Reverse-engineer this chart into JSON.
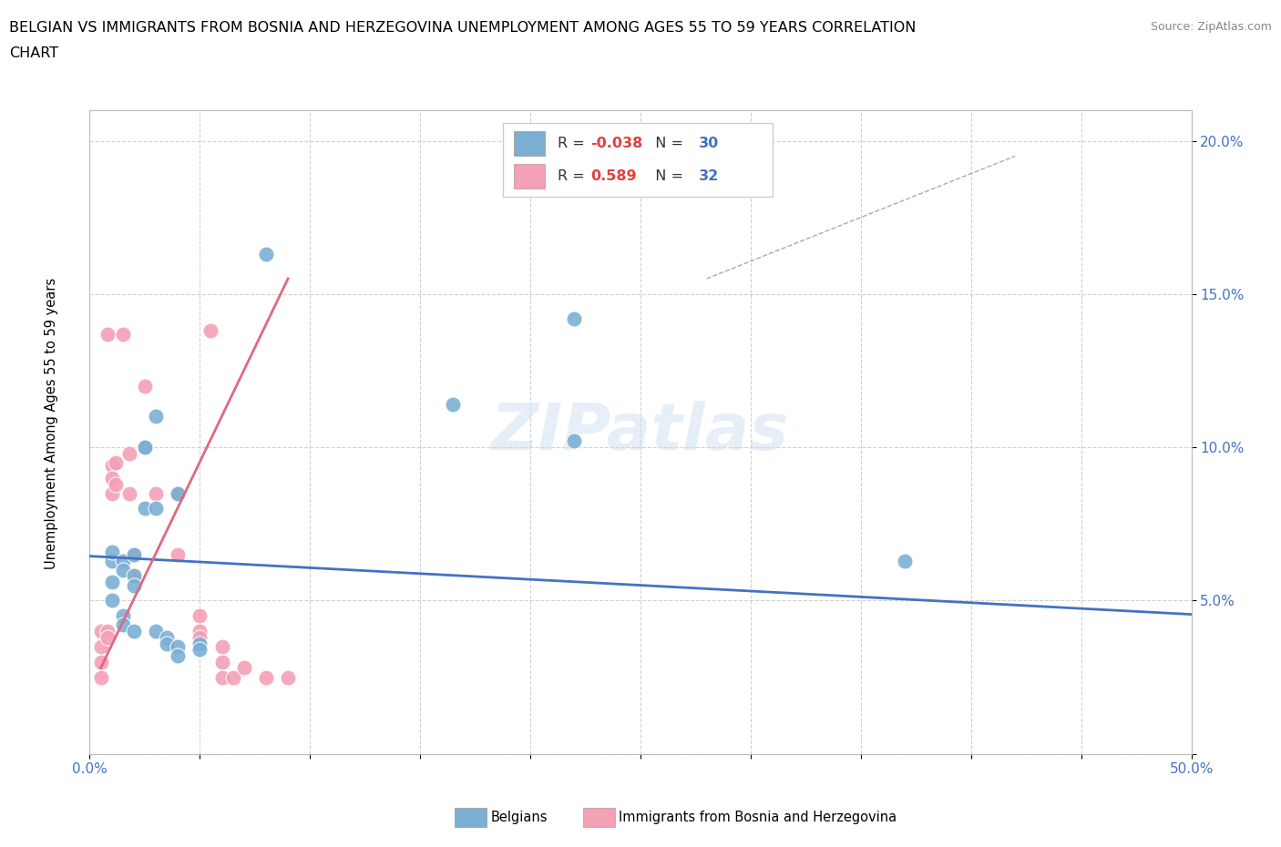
{
  "title_line1": "BELGIAN VS IMMIGRANTS FROM BOSNIA AND HERZEGOVINA UNEMPLOYMENT AMONG AGES 55 TO 59 YEARS CORRELATION",
  "title_line2": "CHART",
  "source_text": "Source: ZipAtlas.com",
  "ylabel": "Unemployment Among Ages 55 to 59 years",
  "xlim": [
    0.0,
    0.5
  ],
  "ylim": [
    0.0,
    0.21
  ],
  "xticks": [
    0.0,
    0.05,
    0.1,
    0.15,
    0.2,
    0.25,
    0.3,
    0.35,
    0.4,
    0.45,
    0.5
  ],
  "xticklabels": [
    "0.0%",
    "",
    "",
    "",
    "",
    "",
    "",
    "",
    "",
    "",
    "50.0%"
  ],
  "yticks": [
    0.0,
    0.05,
    0.1,
    0.15,
    0.2
  ],
  "yticklabels": [
    "",
    "5.0%",
    "10.0%",
    "15.0%",
    "20.0%"
  ],
  "blue_R": "-0.038",
  "blue_N": "30",
  "pink_R": "0.589",
  "pink_N": "32",
  "blue_color": "#7BAFD4",
  "pink_color": "#F4A0B5",
  "blue_line_color": "#4472C4",
  "pink_line_color": "#E06880",
  "watermark": "ZIPatlas",
  "blue_scatter": [
    [
      0.01,
      0.063
    ],
    [
      0.01,
      0.066
    ],
    [
      0.01,
      0.056
    ],
    [
      0.01,
      0.05
    ],
    [
      0.015,
      0.063
    ],
    [
      0.015,
      0.06
    ],
    [
      0.015,
      0.045
    ],
    [
      0.015,
      0.042
    ],
    [
      0.02,
      0.065
    ],
    [
      0.02,
      0.058
    ],
    [
      0.02,
      0.055
    ],
    [
      0.02,
      0.04
    ],
    [
      0.025,
      0.1
    ],
    [
      0.025,
      0.1
    ],
    [
      0.025,
      0.08
    ],
    [
      0.03,
      0.11
    ],
    [
      0.03,
      0.08
    ],
    [
      0.03,
      0.04
    ],
    [
      0.035,
      0.038
    ],
    [
      0.035,
      0.036
    ],
    [
      0.04,
      0.085
    ],
    [
      0.04,
      0.035
    ],
    [
      0.04,
      0.032
    ],
    [
      0.05,
      0.036
    ],
    [
      0.05,
      0.034
    ],
    [
      0.08,
      0.163
    ],
    [
      0.165,
      0.114
    ],
    [
      0.22,
      0.142
    ],
    [
      0.22,
      0.102
    ],
    [
      0.37,
      0.063
    ]
  ],
  "pink_scatter": [
    [
      0.005,
      0.035
    ],
    [
      0.005,
      0.04
    ],
    [
      0.005,
      0.03
    ],
    [
      0.005,
      0.025
    ],
    [
      0.008,
      0.137
    ],
    [
      0.008,
      0.04
    ],
    [
      0.008,
      0.038
    ],
    [
      0.01,
      0.094
    ],
    [
      0.01,
      0.09
    ],
    [
      0.01,
      0.085
    ],
    [
      0.012,
      0.095
    ],
    [
      0.012,
      0.088
    ],
    [
      0.015,
      0.137
    ],
    [
      0.018,
      0.098
    ],
    [
      0.018,
      0.085
    ],
    [
      0.02,
      0.065
    ],
    [
      0.02,
      0.058
    ],
    [
      0.025,
      0.12
    ],
    [
      0.03,
      0.085
    ],
    [
      0.04,
      0.085
    ],
    [
      0.04,
      0.065
    ],
    [
      0.05,
      0.045
    ],
    [
      0.05,
      0.04
    ],
    [
      0.05,
      0.038
    ],
    [
      0.055,
      0.138
    ],
    [
      0.06,
      0.035
    ],
    [
      0.06,
      0.03
    ],
    [
      0.06,
      0.025
    ],
    [
      0.065,
      0.025
    ],
    [
      0.07,
      0.028
    ],
    [
      0.08,
      0.025
    ],
    [
      0.09,
      0.025
    ]
  ],
  "blue_trend_x": [
    0.0,
    0.5
  ],
  "blue_trend_y": [
    0.0645,
    0.0455
  ],
  "pink_trend_x": [
    0.005,
    0.09
  ],
  "pink_trend_y": [
    0.028,
    0.155
  ],
  "legend_items": [
    {
      "label": "Belgians",
      "color": "#7BAFD4"
    },
    {
      "label": "Immigrants from Bosnia and Herzegovina",
      "color": "#F4A0B5"
    }
  ]
}
